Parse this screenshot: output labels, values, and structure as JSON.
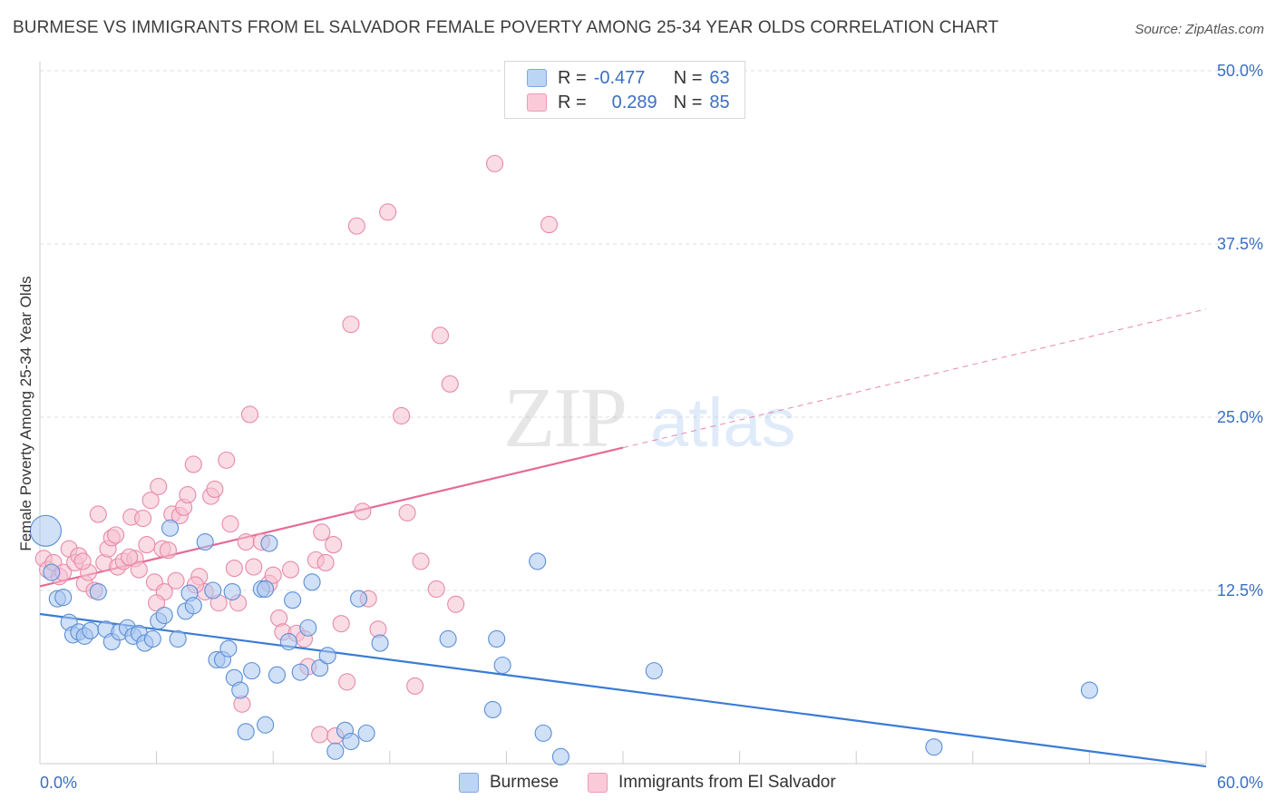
{
  "title": "BURMESE VS IMMIGRANTS FROM EL SALVADOR FEMALE POVERTY AMONG 25-34 YEAR OLDS CORRELATION CHART",
  "source": "Source: ZipAtlas.com",
  "watermark": {
    "zip": "ZIP",
    "atlas": "atlas"
  },
  "legend_top": {
    "rows": [
      {
        "r_label": "R =",
        "r_value": "-0.477",
        "n_label": "N =",
        "n_value": "63",
        "color": "#a9c7f0"
      },
      {
        "r_label": "R =",
        "r_value": "0.289",
        "n_label": "N =",
        "n_value": "85",
        "color": "#f4b6c9"
      }
    ]
  },
  "bottom_legend": [
    {
      "label": "Burmese",
      "color": "#a9c7f0"
    },
    {
      "label": "Immigrants from El Salvador",
      "color": "#f4b6c9"
    }
  ],
  "colors": {
    "blue_fill": "#a9c7f0",
    "blue_stroke": "#5b8fd6",
    "blue_line": "#3a7bd5",
    "pink_fill": "#f6c0d0",
    "pink_stroke": "#e88aa8",
    "pink_line": "#e56b95",
    "axis_text": "#3a6fc4",
    "grid": "#dddddd"
  },
  "chart_data": {
    "type": "scatter",
    "title": "BURMESE VS IMMIGRANTS FROM EL SALVADOR FEMALE POVERTY AMONG 25-34 YEAR OLDS CORRELATION CHART",
    "xlabel": "",
    "ylabel": "Female Poverty Among 25-34 Year Olds",
    "xlim": [
      0,
      60
    ],
    "ylim": [
      0,
      50
    ],
    "x_tick_labels": [
      "0.0%",
      "60.0%"
    ],
    "y_ticks": [
      12.5,
      25.0,
      37.5,
      50.0
    ],
    "y_tick_labels": [
      "12.5%",
      "25.0%",
      "37.5%",
      "50.0%"
    ],
    "grid": true,
    "legend_position": "top-center",
    "series": [
      {
        "name": "Burmese",
        "r": -0.477,
        "n": 63,
        "trend": {
          "x": [
            0,
            60
          ],
          "y": [
            10.8,
            -0.2
          ],
          "dashed_from_x": null
        },
        "points": [
          [
            0.3,
            16.8,
            "L"
          ],
          [
            0.6,
            13.8
          ],
          [
            0.9,
            11.9
          ],
          [
            1.2,
            12.0
          ],
          [
            1.5,
            10.2
          ],
          [
            1.7,
            9.3
          ],
          [
            2.0,
            9.5
          ],
          [
            2.3,
            9.2
          ],
          [
            2.6,
            9.6
          ],
          [
            3.0,
            12.4
          ],
          [
            3.4,
            9.7
          ],
          [
            3.7,
            8.8
          ],
          [
            4.1,
            9.5
          ],
          [
            4.5,
            9.8
          ],
          [
            4.8,
            9.2
          ],
          [
            5.1,
            9.4
          ],
          [
            5.4,
            8.7
          ],
          [
            5.8,
            9.0
          ],
          [
            6.1,
            10.3
          ],
          [
            6.4,
            10.7
          ],
          [
            6.7,
            17.0
          ],
          [
            7.1,
            9.0
          ],
          [
            7.5,
            11.0
          ],
          [
            7.7,
            12.3
          ],
          [
            7.9,
            11.4
          ],
          [
            8.5,
            16.0
          ],
          [
            8.9,
            12.5
          ],
          [
            9.1,
            7.5
          ],
          [
            9.4,
            7.5
          ],
          [
            9.7,
            8.3
          ],
          [
            10.0,
            6.2
          ],
          [
            10.3,
            5.3
          ],
          [
            10.6,
            2.3
          ],
          [
            10.9,
            6.7
          ],
          [
            11.4,
            12.6
          ],
          [
            11.6,
            2.8
          ],
          [
            11.8,
            15.9
          ],
          [
            12.2,
            6.4
          ],
          [
            12.8,
            8.8
          ],
          [
            13.0,
            11.8
          ],
          [
            13.4,
            6.6
          ],
          [
            13.8,
            9.8
          ],
          [
            14.0,
            13.1
          ],
          [
            14.4,
            6.9
          ],
          [
            14.8,
            7.8
          ],
          [
            15.2,
            0.9
          ],
          [
            15.7,
            2.4
          ],
          [
            16.0,
            1.6
          ],
          [
            16.4,
            11.9
          ],
          [
            16.8,
            2.2
          ],
          [
            17.5,
            8.7
          ],
          [
            21.0,
            9.0
          ],
          [
            23.3,
            3.9
          ],
          [
            23.5,
            9.0
          ],
          [
            23.8,
            7.1
          ],
          [
            25.6,
            14.6
          ],
          [
            25.9,
            2.2
          ],
          [
            26.8,
            0.5
          ],
          [
            31.6,
            6.7
          ],
          [
            46.0,
            1.2
          ],
          [
            54.0,
            5.3
          ],
          [
            11.6,
            12.6
          ],
          [
            9.9,
            12.4
          ]
        ]
      },
      {
        "name": "Immigrants from El Salvador",
        "r": 0.289,
        "n": 85,
        "trend": {
          "x": [
            0,
            60
          ],
          "y": [
            12.8,
            32.8
          ],
          "dashed_from_x": 30
        },
        "points": [
          [
            0.2,
            14.8
          ],
          [
            0.4,
            14.0
          ],
          [
            0.7,
            14.5
          ],
          [
            1.0,
            13.5
          ],
          [
            1.2,
            13.8
          ],
          [
            1.5,
            15.5
          ],
          [
            1.8,
            14.5
          ],
          [
            2.0,
            15.0
          ],
          [
            2.3,
            13.0
          ],
          [
            2.5,
            13.8
          ],
          [
            2.8,
            12.5
          ],
          [
            3.0,
            18.0
          ],
          [
            3.3,
            14.5
          ],
          [
            3.5,
            15.5
          ],
          [
            3.7,
            16.3
          ],
          [
            3.9,
            16.5
          ],
          [
            4.0,
            14.2
          ],
          [
            4.3,
            14.6
          ],
          [
            4.7,
            17.8
          ],
          [
            4.9,
            14.8
          ],
          [
            5.1,
            14.0
          ],
          [
            5.3,
            17.7
          ],
          [
            5.5,
            15.8
          ],
          [
            5.7,
            19.0
          ],
          [
            5.9,
            13.1
          ],
          [
            6.1,
            20.0
          ],
          [
            6.3,
            15.5
          ],
          [
            6.4,
            12.4
          ],
          [
            6.6,
            15.4
          ],
          [
            6.8,
            18.0
          ],
          [
            7.0,
            13.2
          ],
          [
            7.2,
            17.9
          ],
          [
            7.4,
            18.5
          ],
          [
            7.6,
            19.4
          ],
          [
            7.9,
            21.6
          ],
          [
            8.2,
            13.5
          ],
          [
            8.5,
            12.4
          ],
          [
            8.8,
            19.3
          ],
          [
            9.0,
            19.8
          ],
          [
            9.2,
            11.6
          ],
          [
            9.6,
            21.9
          ],
          [
            9.8,
            17.3
          ],
          [
            10.0,
            14.1
          ],
          [
            10.2,
            11.6
          ],
          [
            10.4,
            4.3
          ],
          [
            10.6,
            16.0
          ],
          [
            10.8,
            25.2
          ],
          [
            11.0,
            14.2
          ],
          [
            11.4,
            16.0
          ],
          [
            11.8,
            13.0
          ],
          [
            12.0,
            13.6
          ],
          [
            12.3,
            10.5
          ],
          [
            12.5,
            9.5
          ],
          [
            12.9,
            14.0
          ],
          [
            13.2,
            9.4
          ],
          [
            13.6,
            9.0
          ],
          [
            13.8,
            7.0
          ],
          [
            14.2,
            14.7
          ],
          [
            14.5,
            16.7
          ],
          [
            14.7,
            14.5
          ],
          [
            15.1,
            15.8
          ],
          [
            15.5,
            10.1
          ],
          [
            15.8,
            5.9
          ],
          [
            16.0,
            31.7
          ],
          [
            16.3,
            38.8
          ],
          [
            16.6,
            18.2
          ],
          [
            16.9,
            11.9
          ],
          [
            17.4,
            9.7
          ],
          [
            17.9,
            39.8
          ],
          [
            18.6,
            25.1
          ],
          [
            18.9,
            18.1
          ],
          [
            19.3,
            5.6
          ],
          [
            19.6,
            14.6
          ],
          [
            20.4,
            12.6
          ],
          [
            20.6,
            30.9
          ],
          [
            21.1,
            27.4
          ],
          [
            21.4,
            11.5
          ],
          [
            23.4,
            43.3
          ],
          [
            26.2,
            38.9
          ],
          [
            8.0,
            12.9
          ],
          [
            6.0,
            11.6
          ],
          [
            14.4,
            2.1
          ],
          [
            15.2,
            2.0
          ],
          [
            4.6,
            14.9
          ],
          [
            2.2,
            14.6
          ]
        ]
      }
    ]
  }
}
